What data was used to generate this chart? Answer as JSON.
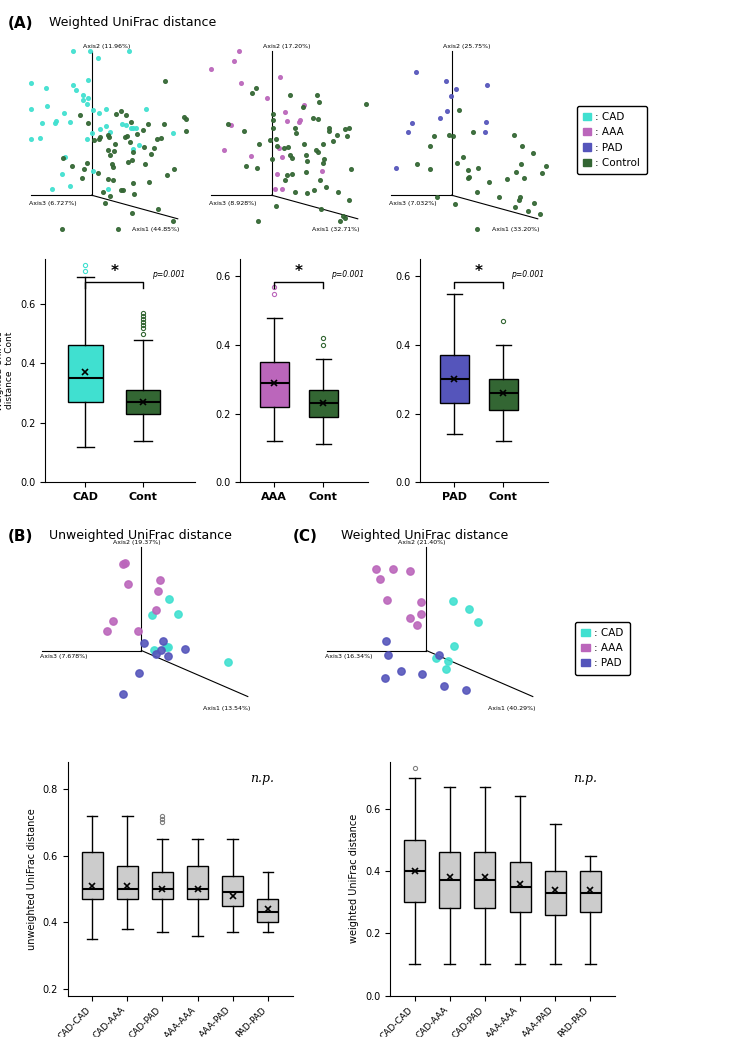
{
  "title_A": "Weighted UniFrac distance",
  "title_B": "Unweighted UniFrac distance",
  "title_C": "Weighted UniFrac distance",
  "colors": {
    "CAD": "#40E0D0",
    "AAA": "#BB66BB",
    "PAD": "#5555BB",
    "Control": "#336633"
  },
  "legend_A": [
    {
      "label": ": CAD",
      "color": "#40E0D0"
    },
    {
      "label": ": AAA",
      "color": "#BB66BB"
    },
    {
      "label": ": PAD",
      "color": "#5555BB"
    },
    {
      "label": ": Control",
      "color": "#336633"
    }
  ],
  "legend_BC": [
    {
      "label": ": CAD",
      "color": "#40E0D0"
    },
    {
      "label": ": AAA",
      "color": "#BB66BB"
    },
    {
      "label": ": PAD",
      "color": "#5555BB"
    }
  ],
  "pcoa_A1": {
    "axis1_label": "Axis1 (44.85%)",
    "axis2_label": "Axis2 (11.96%)",
    "axis3_label": "Axis3 (6.727%)"
  },
  "pcoa_A2": {
    "axis1_label": "Axis1 (32.71%)",
    "axis2_label": "Axis2 (17.20%)",
    "axis3_label": "Axis3 (8.928%)"
  },
  "pcoa_A3": {
    "axis1_label": "Axis1 (33.20%)",
    "axis2_label": "Axis2 (25.75%)",
    "axis3_label": "Axis3 (7.032%)"
  },
  "pcoa_B": {
    "axis1_label": "Axis1 (13.54%)",
    "axis2_label": "Axis2 (19.37%)",
    "axis3_label": "Axis3 (7.678%)"
  },
  "pcoa_C": {
    "axis1_label": "Axis1 (40.29%)",
    "axis2_label": "Axis2 (21.40%)",
    "axis3_label": "Axis3 (16.34%)"
  },
  "boxplot_A_CAD": {
    "whislo": 0.12,
    "q1": 0.27,
    "med": 0.35,
    "q3": 0.46,
    "whishi": 0.69,
    "mean": 0.37,
    "fliers": [
      0.71,
      0.73
    ]
  },
  "boxplot_A_Cont_CAD": {
    "whislo": 0.14,
    "q1": 0.23,
    "med": 0.27,
    "q3": 0.31,
    "whishi": 0.48,
    "mean": 0.27,
    "fliers": [
      0.5,
      0.52,
      0.53,
      0.54,
      0.55,
      0.56,
      0.57
    ]
  },
  "boxplot_A_AAA": {
    "whislo": 0.12,
    "q1": 0.22,
    "med": 0.29,
    "q3": 0.35,
    "whishi": 0.48,
    "mean": 0.29,
    "fliers": [
      0.55,
      0.57
    ]
  },
  "boxplot_A_Cont_AAA": {
    "whislo": 0.11,
    "q1": 0.19,
    "med": 0.23,
    "q3": 0.27,
    "whishi": 0.36,
    "mean": 0.23,
    "fliers": [
      0.4,
      0.42
    ]
  },
  "boxplot_A_PAD": {
    "whislo": 0.14,
    "q1": 0.23,
    "med": 0.3,
    "q3": 0.37,
    "whishi": 0.55,
    "mean": 0.3,
    "fliers": []
  },
  "boxplot_A_Cont_PAD": {
    "whislo": 0.12,
    "q1": 0.21,
    "med": 0.26,
    "q3": 0.3,
    "whishi": 0.4,
    "mean": 0.26,
    "fliers": [
      0.47
    ]
  },
  "boxplot_B_categories": [
    "CAD-CAD",
    "CAD-AAA",
    "CAD-PAD",
    "AAA-AAA",
    "AAA-PAD",
    "PAD-PAD"
  ],
  "boxplot_B_data": [
    {
      "whislo": 0.35,
      "q1": 0.47,
      "med": 0.5,
      "q3": 0.61,
      "whishi": 0.72,
      "mean": 0.51,
      "fliers": []
    },
    {
      "whislo": 0.38,
      "q1": 0.47,
      "med": 0.5,
      "q3": 0.57,
      "whishi": 0.72,
      "mean": 0.51,
      "fliers": []
    },
    {
      "whislo": 0.37,
      "q1": 0.47,
      "med": 0.5,
      "q3": 0.55,
      "whishi": 0.65,
      "mean": 0.5,
      "fliers": [
        0.7,
        0.71,
        0.72
      ]
    },
    {
      "whislo": 0.36,
      "q1": 0.47,
      "med": 0.5,
      "q3": 0.57,
      "whishi": 0.65,
      "mean": 0.5,
      "fliers": []
    },
    {
      "whislo": 0.37,
      "q1": 0.45,
      "med": 0.49,
      "q3": 0.54,
      "whishi": 0.65,
      "mean": 0.48,
      "fliers": []
    },
    {
      "whislo": 0.37,
      "q1": 0.4,
      "med": 0.43,
      "q3": 0.47,
      "whishi": 0.55,
      "mean": 0.44,
      "fliers": []
    }
  ],
  "boxplot_C_categories": [
    "CAD-CAD",
    "CAD-AAA",
    "CAD-PAD",
    "AAA-AAA",
    "AAA-PAD",
    "PAD-PAD"
  ],
  "boxplot_C_data": [
    {
      "whislo": 0.1,
      "q1": 0.3,
      "med": 0.4,
      "q3": 0.5,
      "whishi": 0.7,
      "mean": 0.4,
      "fliers": [
        0.73
      ]
    },
    {
      "whislo": 0.1,
      "q1": 0.28,
      "med": 0.37,
      "q3": 0.46,
      "whishi": 0.67,
      "mean": 0.38,
      "fliers": []
    },
    {
      "whislo": 0.1,
      "q1": 0.28,
      "med": 0.37,
      "q3": 0.46,
      "whishi": 0.67,
      "mean": 0.38,
      "fliers": []
    },
    {
      "whislo": 0.1,
      "q1": 0.27,
      "med": 0.35,
      "q3": 0.43,
      "whishi": 0.64,
      "mean": 0.36,
      "fliers": []
    },
    {
      "whislo": 0.1,
      "q1": 0.26,
      "med": 0.33,
      "q3": 0.4,
      "whishi": 0.55,
      "mean": 0.34,
      "fliers": []
    },
    {
      "whislo": 0.1,
      "q1": 0.27,
      "med": 0.33,
      "q3": 0.4,
      "whishi": 0.45,
      "mean": 0.34,
      "fliers": []
    }
  ]
}
